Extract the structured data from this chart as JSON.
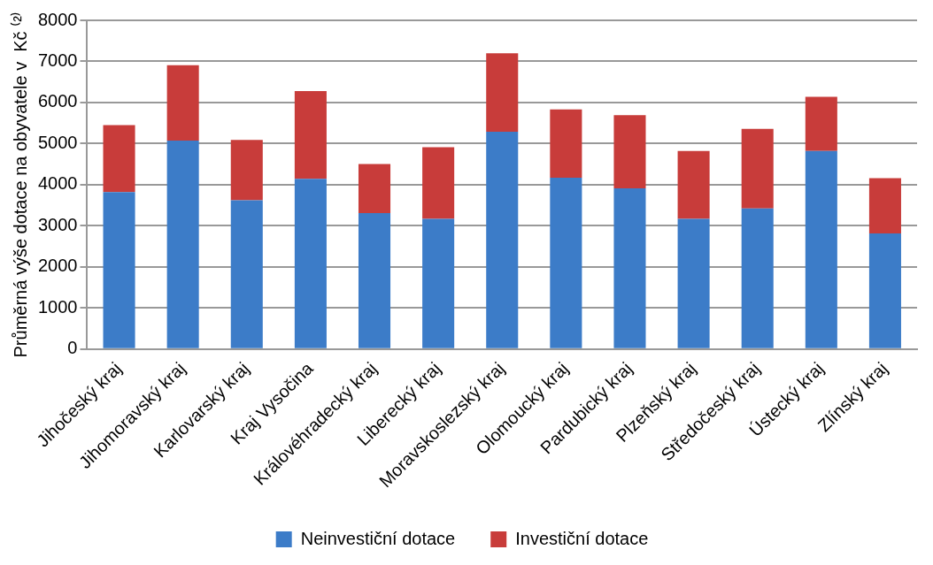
{
  "chart_data": {
    "type": "bar",
    "stacked": true,
    "ylabel": "Průměrná výše dotace na obyvatele v  Kč ⁽²⁾",
    "categories": [
      "Jihočeský kraj",
      "Jihomoravský kraj",
      "Karlovarský kraj",
      "Kraj Vysočina",
      "Královéhradecký kraj",
      "Liberecký kraj",
      "Moravskoslezský kraj",
      "Olomoucký kraj",
      "Pardubický kraj",
      "Plzeňský kraj",
      "Středočeský kraj",
      "Ústecký kraj",
      "Zlínský kraj"
    ],
    "series": [
      {
        "name": "Neinvestiční dotace",
        "color": "#3c7cc8",
        "values": [
          3820,
          5070,
          3620,
          4140,
          3310,
          3170,
          5290,
          4170,
          3910,
          3170,
          3420,
          4820,
          2810
        ]
      },
      {
        "name": "Investiční dotace",
        "color": "#c83c3a",
        "values": [
          1630,
          1840,
          1470,
          2140,
          1190,
          1740,
          1910,
          1660,
          1780,
          1650,
          1940,
          1320,
          1350
        ]
      }
    ],
    "ylim": [
      0,
      8000
    ],
    "yticks": [
      0,
      1000,
      2000,
      3000,
      4000,
      5000,
      6000,
      7000,
      8000
    ],
    "grid": "y",
    "legend": "bottom"
  }
}
